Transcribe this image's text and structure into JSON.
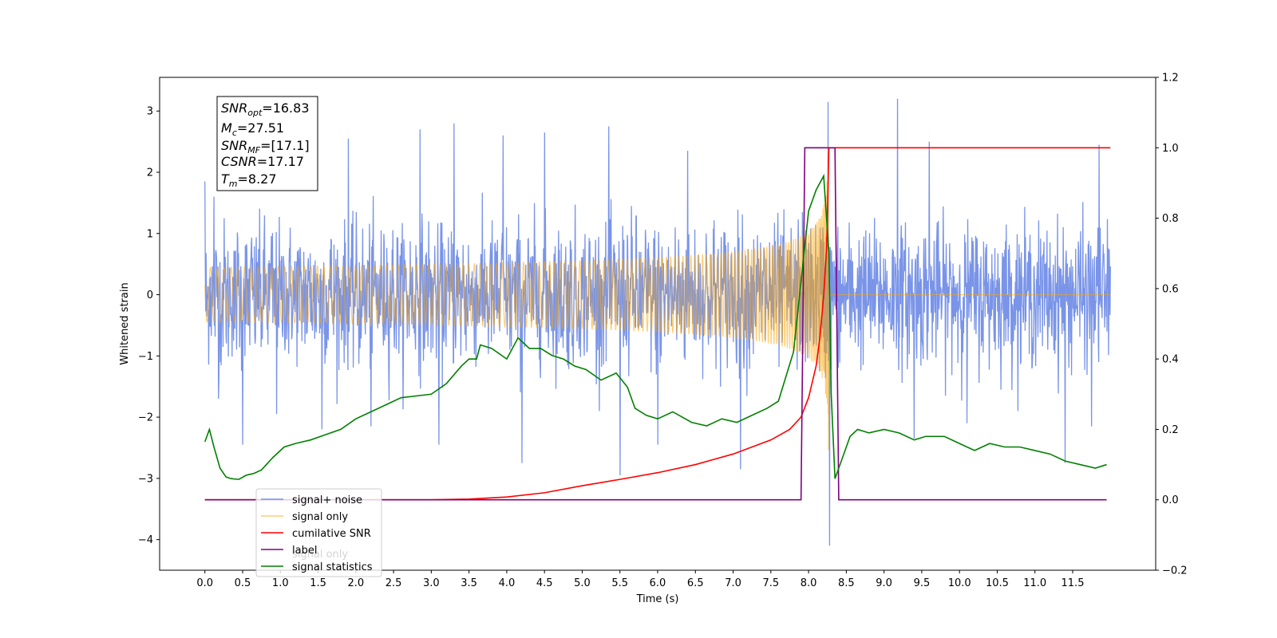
{
  "chart_data": {
    "type": "line",
    "xlabel": "Time (s)",
    "ylabel_left": "Whitened strain",
    "ylabel_right": "",
    "xlim": [
      -0.6,
      12.6
    ],
    "ylim_left": [
      -4.5,
      3.55
    ],
    "ylim_right": [
      -0.2,
      1.2
    ],
    "x_ticks": [
      "0.0",
      "0.5",
      "1.0",
      "1.5",
      "2.0",
      "2.5",
      "3.0",
      "3.5",
      "4.0",
      "4.5",
      "5.0",
      "5.5",
      "6.0",
      "6.5",
      "7.0",
      "7.5",
      "8.0",
      "8.5",
      "9.0",
      "9.5",
      "10.0",
      "10.5",
      "11.0",
      "11.5"
    ],
    "y_ticks_left": [
      "3",
      "2",
      "1",
      "0",
      "−1",
      "−2",
      "−3",
      "−4"
    ],
    "y_ticks_right": [
      "1.2",
      "1.0",
      "0.8",
      "0.6",
      "0.4",
      "0.2",
      "0.0",
      "−0.2"
    ],
    "grid": false,
    "legend_position": "lower-left",
    "colors": {
      "signal_noise": "#6a88e5",
      "signal_only": "#ffa500",
      "cumulative_snr": "#ff0000",
      "label": "#800080",
      "statistics": "#008000"
    },
    "annotation_box": {
      "snr_opt": {
        "base": "SNR",
        "sub": "opt",
        "value": "=16.83"
      },
      "mc": {
        "base": "M",
        "sub": "c",
        "value": "=27.51"
      },
      "snr_mf": {
        "base": "SNR",
        "sub": "MF",
        "value": "=[17.1]"
      },
      "csnr": {
        "base": "CSNR",
        "sub": "",
        "value": "=17.17"
      },
      "tm": {
        "base": "T",
        "sub": "m",
        "value": "=8.27"
      }
    },
    "series": [
      {
        "name": "signal+ noise",
        "axis": "left",
        "description_range": [
          -1.5,
          1.85
        ],
        "x_start": 0.0,
        "x_end": 12.0,
        "spikes": [
          [
            0.0,
            1.85
          ],
          [
            0.12,
            1.6
          ],
          [
            1.9,
            2.55
          ],
          [
            2.85,
            2.7
          ],
          [
            3.3,
            2.8
          ],
          [
            3.95,
            2.6
          ],
          [
            4.5,
            2.65
          ],
          [
            5.35,
            2.75
          ],
          [
            6.4,
            2.35
          ],
          [
            8.26,
            3.15
          ],
          [
            9.18,
            3.2
          ],
          [
            9.6,
            2.5
          ],
          [
            11.85,
            2.45
          ],
          [
            0.18,
            -1.7
          ],
          [
            0.5,
            -2.45
          ],
          [
            1.55,
            -2.2
          ],
          [
            2.2,
            -2.15
          ],
          [
            4.2,
            -2.75
          ],
          [
            5.5,
            -2.95
          ],
          [
            6.0,
            -2.45
          ],
          [
            7.1,
            -2.85
          ],
          [
            8.28,
            -4.1
          ],
          [
            9.4,
            -2.35
          ],
          [
            11.4,
            -2.75
          ],
          [
            11.75,
            -2.15
          ],
          [
            3.1,
            -2.45
          ],
          [
            0.95,
            -1.95
          ],
          [
            10.1,
            -2.1
          ]
        ]
      },
      {
        "name": "signal only",
        "axis": "left",
        "x_start": 0.0,
        "x_end": 12.0,
        "merger_time": 8.27,
        "peak_amplitude": 3.0
      },
      {
        "name": "cumilative SNR",
        "axis": "right",
        "x": [
          0.0,
          3.0,
          3.5,
          4.0,
          4.5,
          5.0,
          5.5,
          6.0,
          6.5,
          7.0,
          7.5,
          7.75,
          7.9,
          8.0,
          8.1,
          8.15,
          8.2,
          8.24,
          8.27,
          12.0
        ],
        "y": [
          0.0,
          0.0,
          0.002,
          0.008,
          0.02,
          0.04,
          0.058,
          0.077,
          0.1,
          0.13,
          0.17,
          0.2,
          0.235,
          0.29,
          0.38,
          0.46,
          0.58,
          0.72,
          1.0,
          1.0
        ]
      },
      {
        "name": "label",
        "axis": "right",
        "x": [
          0.0,
          7.9,
          7.95,
          8.35,
          8.4,
          11.95
        ],
        "y": [
          0.0,
          0.0,
          1.0,
          1.0,
          0.0,
          0.0
        ]
      },
      {
        "name": "signal statistics",
        "axis": "right",
        "x": [
          0.0,
          0.06,
          0.12,
          0.2,
          0.28,
          0.35,
          0.45,
          0.55,
          0.65,
          0.75,
          0.9,
          1.05,
          1.2,
          1.4,
          1.6,
          1.8,
          2.0,
          2.2,
          2.4,
          2.6,
          2.8,
          3.0,
          3.2,
          3.4,
          3.5,
          3.6,
          3.65,
          3.8,
          4.0,
          4.15,
          4.3,
          4.45,
          4.6,
          4.75,
          4.9,
          5.05,
          5.25,
          5.45,
          5.6,
          5.7,
          5.85,
          6.0,
          6.2,
          6.45,
          6.65,
          6.85,
          7.05,
          7.25,
          7.45,
          7.6,
          7.8,
          7.9,
          8.0,
          8.1,
          8.2,
          8.27,
          8.3,
          8.35,
          8.45,
          8.55,
          8.65,
          8.8,
          9.0,
          9.2,
          9.4,
          9.55,
          9.8,
          10.0,
          10.2,
          10.4,
          10.6,
          10.8,
          11.0,
          11.2,
          11.4,
          11.6,
          11.8,
          11.95
        ],
        "y": [
          0.165,
          0.2,
          0.15,
          0.09,
          0.065,
          0.06,
          0.058,
          0.07,
          0.075,
          0.085,
          0.12,
          0.15,
          0.16,
          0.17,
          0.185,
          0.2,
          0.23,
          0.25,
          0.27,
          0.29,
          0.295,
          0.3,
          0.33,
          0.38,
          0.4,
          0.4,
          0.44,
          0.43,
          0.4,
          0.46,
          0.43,
          0.43,
          0.41,
          0.4,
          0.38,
          0.37,
          0.34,
          0.36,
          0.32,
          0.26,
          0.24,
          0.23,
          0.25,
          0.22,
          0.21,
          0.23,
          0.22,
          0.24,
          0.26,
          0.28,
          0.42,
          0.62,
          0.82,
          0.88,
          0.92,
          0.7,
          0.3,
          0.06,
          0.12,
          0.18,
          0.2,
          0.19,
          0.2,
          0.19,
          0.17,
          0.18,
          0.18,
          0.16,
          0.14,
          0.16,
          0.15,
          0.15,
          0.14,
          0.13,
          0.11,
          0.1,
          0.09,
          0.1
        ]
      }
    ],
    "legend": [
      "signal+ noise",
      "signal only",
      "cumilative SNR",
      "label",
      "signal statistics"
    ],
    "legend_overprint": [
      "signal only"
    ]
  }
}
